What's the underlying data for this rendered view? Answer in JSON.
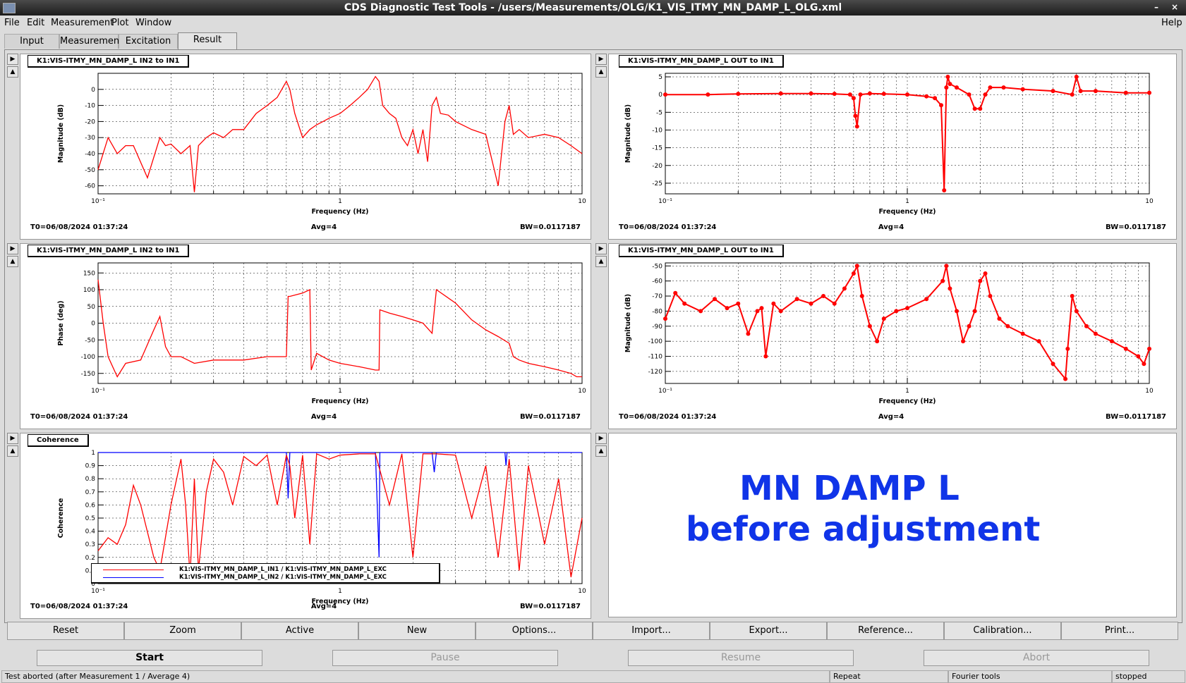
{
  "window": {
    "title": "CDS Diagnostic Test Tools - /users/Measurements/OLG/K1_VIS_ITMY_MN_DAMP_L_OLG.xml",
    "minimize": "–",
    "close": "×"
  },
  "menu": {
    "file": "File",
    "edit": "Edit",
    "measurement": "Measurement",
    "plot": "Plot",
    "window": "Window",
    "help": "Help"
  },
  "tabs": [
    "Input",
    "Measurement",
    "Excitation",
    "Result"
  ],
  "pads": [
    {
      "title": "K1:VIS-ITMY_MN_DAMP_L IN2 to IN1",
      "xlabel": "Frequency (Hz)",
      "ylabel": "Magnitude (dB)",
      "t0": "T0=06/08/2024 01:37:24",
      "avg": "Avg=4",
      "bw": "BW=0.0117187"
    },
    {
      "title": "K1:VIS-ITMY_MN_DAMP_L OUT to IN1",
      "xlabel": "Frequency (Hz)",
      "ylabel": "Magnitude (dB)",
      "t0": "T0=06/08/2024 01:37:24",
      "avg": "Avg=4",
      "bw": "BW=0.0117187"
    },
    {
      "title": "K1:VIS-ITMY_MN_DAMP_L IN2 to IN1",
      "xlabel": "Frequency (Hz)",
      "ylabel": "Phase (deg)",
      "t0": "T0=06/08/2024 01:37:24",
      "avg": "Avg=4",
      "bw": "BW=0.0117187"
    },
    {
      "title": "K1:VIS-ITMY_MN_DAMP_L OUT to IN1",
      "xlabel": "Frequency (Hz)",
      "ylabel": "Magnitude (dB)",
      "t0": "T0=06/08/2024 01:37:24",
      "avg": "Avg=4",
      "bw": "BW=0.0117187"
    },
    {
      "title": "Coherence",
      "xlabel": "Frequency (Hz)",
      "ylabel": "Coherence",
      "t0": "T0=06/08/2024 01:37:24",
      "avg": "Avg=4",
      "bw": "BW=0.0117187"
    }
  ],
  "legend": {
    "in1": "K1:VIS-ITMY_MN_DAMP_L_IN1 / K1:VIS-ITMY_MN_DAMP_L_EXC",
    "in2": "K1:VIS-ITMY_MN_DAMP_L_IN2 / K1:VIS-ITMY_MN_DAMP_L_EXC"
  },
  "note": {
    "line1": "MN DAMP L",
    "line2": "before adjustment",
    "color": "#1034e8"
  },
  "buttons": [
    "Reset",
    "Zoom",
    "Active",
    "New",
    "Options...",
    "Import...",
    "Export...",
    "Reference...",
    "Calibration...",
    "Print..."
  ],
  "controls": {
    "start": "Start",
    "pause": "Pause",
    "resume": "Resume",
    "abort": "Abort"
  },
  "status": {
    "message": "Test aborted (after Measurement 1 / Average 4)",
    "repeat": "Repeat",
    "fourier": "Fourier tools",
    "state": "stopped"
  },
  "colors": {
    "trace": "#ff0000",
    "trace2": "#0000ff"
  },
  "chart_data": [
    {
      "type": "line",
      "title": "K1:VIS-ITMY_MN_DAMP_L IN2 to IN1",
      "xlabel": "Frequency (Hz)",
      "ylabel": "Magnitude (dB)",
      "xscale": "log",
      "xlim": [
        0.1,
        10
      ],
      "ylim": [
        -65,
        10
      ],
      "xticks": [
        "10⁻¹",
        "1",
        "10"
      ],
      "yticks": [
        0,
        -10,
        -20,
        -30,
        -40,
        -50,
        -60
      ],
      "grid": true,
      "series": [
        {
          "color": "#ff0000",
          "x": [
            0.1,
            0.11,
            0.12,
            0.13,
            0.14,
            0.16,
            0.18,
            0.19,
            0.2,
            0.22,
            0.24,
            0.25,
            0.26,
            0.28,
            0.3,
            0.33,
            0.36,
            0.4,
            0.45,
            0.5,
            0.55,
            0.6,
            0.62,
            0.65,
            0.7,
            0.75,
            0.8,
            0.85,
            0.9,
            1.0,
            1.1,
            1.2,
            1.3,
            1.4,
            1.45,
            1.5,
            1.6,
            1.7,
            1.8,
            1.9,
            2.0,
            2.1,
            2.2,
            2.3,
            2.4,
            2.5,
            2.6,
            2.8,
            3.0,
            3.5,
            4.0,
            4.5,
            4.8,
            5.0,
            5.2,
            5.5,
            6.0,
            7.0,
            8.0,
            9.0,
            10.0
          ],
          "y": [
            -50,
            -30,
            -40,
            -35,
            -35,
            -55,
            -30,
            -35,
            -34,
            -40,
            -35,
            -64,
            -35,
            -30,
            -27,
            -30,
            -25,
            -25,
            -15,
            -10,
            -5,
            5,
            0,
            -15,
            -30,
            -25,
            -22,
            -20,
            -18,
            -15,
            -10,
            -5,
            0,
            8,
            5,
            -10,
            -15,
            -18,
            -30,
            -35,
            -25,
            -40,
            -25,
            -45,
            -10,
            -5,
            -15,
            -16,
            -20,
            -25,
            -28,
            -60,
            -20,
            -10,
            -28,
            -25,
            -30,
            -28,
            -30,
            -35,
            -40
          ]
        }
      ]
    },
    {
      "type": "line",
      "title": "K1:VIS-ITMY_MN_DAMP_L OUT to IN1",
      "xlabel": "Frequency (Hz)",
      "ylabel": "Magnitude (dB)",
      "xscale": "log",
      "xlim": [
        0.1,
        10
      ],
      "ylim": [
        -28,
        6
      ],
      "xticks": [
        "10⁻¹",
        "1",
        "10"
      ],
      "yticks": [
        5,
        0,
        -5,
        -10,
        -15,
        -20,
        -25
      ],
      "grid": true,
      "series": [
        {
          "color": "#ff0000",
          "x": [
            0.1,
            0.15,
            0.2,
            0.3,
            0.4,
            0.5,
            0.58,
            0.6,
            0.61,
            0.62,
            0.64,
            0.7,
            0.8,
            1.0,
            1.2,
            1.3,
            1.38,
            1.42,
            1.45,
            1.47,
            1.5,
            1.6,
            1.8,
            1.9,
            2.0,
            2.1,
            2.2,
            2.5,
            3.0,
            4.0,
            4.8,
            5.0,
            5.2,
            6.0,
            8.0,
            10.0
          ],
          "y": [
            0,
            0,
            0.2,
            0.3,
            0.3,
            0.2,
            0,
            -1,
            -6,
            -9,
            0,
            0.3,
            0.2,
            0,
            -0.5,
            -1,
            -3,
            -27,
            2,
            5,
            3,
            2,
            0,
            -4,
            -4,
            0,
            2,
            2,
            1.5,
            1,
            0,
            5,
            1,
            1,
            0.5,
            0.5
          ]
        }
      ]
    },
    {
      "type": "line",
      "title": "K1:VIS-ITMY_MN_DAMP_L IN2 to IN1",
      "xlabel": "Frequency (Hz)",
      "ylabel": "Phase (deg)",
      "xscale": "log",
      "xlim": [
        0.1,
        10
      ],
      "ylim": [
        -180,
        180
      ],
      "xticks": [
        "10⁻¹",
        "1",
        "10"
      ],
      "yticks": [
        150,
        100,
        50,
        0,
        -50,
        -100,
        -150
      ],
      "grid": true,
      "series": [
        {
          "color": "#ff0000",
          "x": [
            0.1,
            0.105,
            0.11,
            0.12,
            0.13,
            0.15,
            0.17,
            0.18,
            0.19,
            0.2,
            0.22,
            0.25,
            0.3,
            0.35,
            0.4,
            0.5,
            0.6,
            0.61,
            0.62,
            0.7,
            0.75,
            0.76,
            0.8,
            0.9,
            1.0,
            1.2,
            1.4,
            1.45,
            1.46,
            1.6,
            1.8,
            2.0,
            2.2,
            2.4,
            2.5,
            3.0,
            3.5,
            4.0,
            4.5,
            5.0,
            5.2,
            5.5,
            6.0,
            7.0,
            8.0,
            9.0,
            9.5,
            10.0
          ],
          "y": [
            130,
            0,
            -100,
            -160,
            -120,
            -110,
            -20,
            20,
            -70,
            -100,
            -100,
            -120,
            -110,
            -110,
            -110,
            -100,
            -100,
            80,
            80,
            90,
            100,
            -140,
            -90,
            -110,
            -120,
            -130,
            -140,
            -140,
            40,
            30,
            20,
            10,
            0,
            -30,
            100,
            60,
            10,
            -20,
            -40,
            -60,
            -100,
            -110,
            -120,
            -130,
            -140,
            -150,
            -160,
            -160
          ]
        }
      ]
    },
    {
      "type": "line",
      "title": "K1:VIS-ITMY_MN_DAMP_L OUT to IN1",
      "xlabel": "Frequency (Hz)",
      "ylabel": "Magnitude (dB)",
      "xscale": "log",
      "xlim": [
        0.1,
        10
      ],
      "ylim": [
        -128,
        -48
      ],
      "xticks": [
        "10⁻¹",
        "1",
        "10"
      ],
      "yticks": [
        -50,
        -60,
        -70,
        -80,
        -90,
        -100,
        -110,
        -120
      ],
      "grid": true,
      "series": [
        {
          "color": "#ff0000",
          "x": [
            0.1,
            0.11,
            0.12,
            0.14,
            0.16,
            0.18,
            0.2,
            0.22,
            0.24,
            0.25,
            0.26,
            0.28,
            0.3,
            0.35,
            0.4,
            0.45,
            0.5,
            0.55,
            0.6,
            0.62,
            0.65,
            0.7,
            0.75,
            0.8,
            0.9,
            1.0,
            1.2,
            1.4,
            1.45,
            1.5,
            1.6,
            1.7,
            1.8,
            1.9,
            2.0,
            2.1,
            2.2,
            2.4,
            2.6,
            3.0,
            3.5,
            4.0,
            4.5,
            4.6,
            4.8,
            5.0,
            5.5,
            6.0,
            7.0,
            8.0,
            9.0,
            9.5,
            10.0
          ],
          "y": [
            -85,
            -68,
            -75,
            -80,
            -72,
            -78,
            -75,
            -95,
            -80,
            -78,
            -110,
            -75,
            -80,
            -72,
            -75,
            -70,
            -75,
            -65,
            -55,
            -50,
            -70,
            -90,
            -100,
            -85,
            -80,
            -78,
            -72,
            -60,
            -50,
            -65,
            -80,
            -100,
            -90,
            -80,
            -60,
            -55,
            -70,
            -85,
            -90,
            -95,
            -100,
            -115,
            -125,
            -105,
            -70,
            -80,
            -90,
            -95,
            -100,
            -105,
            -110,
            -115,
            -105
          ]
        }
      ]
    },
    {
      "type": "line",
      "title": "Coherence",
      "xlabel": "Frequency (Hz)",
      "ylabel": "Coherence",
      "xscale": "log",
      "xlim": [
        0.1,
        10
      ],
      "ylim": [
        0,
        1
      ],
      "xticks": [
        "10⁻¹",
        "1",
        "10"
      ],
      "yticks": [
        1,
        0.9,
        0.8,
        0.7,
        0.6,
        0.5,
        0.4,
        0.3,
        0.2,
        0.1,
        0
      ],
      "grid": true,
      "series": [
        {
          "name": "K1:VIS-ITMY_MN_DAMP_L_IN1 / K1:VIS-ITMY_MN_DAMP_L_EXC",
          "color": "#ff0000",
          "x": [
            0.1,
            0.11,
            0.12,
            0.13,
            0.14,
            0.15,
            0.17,
            0.18,
            0.2,
            0.22,
            0.23,
            0.24,
            0.25,
            0.26,
            0.28,
            0.3,
            0.33,
            0.36,
            0.4,
            0.45,
            0.5,
            0.55,
            0.6,
            0.62,
            0.65,
            0.7,
            0.75,
            0.8,
            0.9,
            1.0,
            1.2,
            1.4,
            1.6,
            1.8,
            2.0,
            2.2,
            2.5,
            3.0,
            3.5,
            4.0,
            4.5,
            5.0,
            5.5,
            6.0,
            7.0,
            8.0,
            9.0,
            10.0
          ],
          "y": [
            0.25,
            0.35,
            0.3,
            0.45,
            0.75,
            0.6,
            0.2,
            0.1,
            0.6,
            0.95,
            0.6,
            0.05,
            0.8,
            0.1,
            0.7,
            0.95,
            0.85,
            0.6,
            0.97,
            0.9,
            0.98,
            0.6,
            0.98,
            0.9,
            0.5,
            0.98,
            0.3,
            0.99,
            0.95,
            0.98,
            0.99,
            0.99,
            0.6,
            0.99,
            0.2,
            0.99,
            0.99,
            0.98,
            0.5,
            0.9,
            0.2,
            0.95,
            0.1,
            0.9,
            0.3,
            0.8,
            0.05,
            0.5
          ]
        },
        {
          "name": "K1:VIS-ITMY_MN_DAMP_L_IN2 / K1:VIS-ITMY_MN_DAMP_L_EXC",
          "color": "#0000ff",
          "x": [
            0.1,
            0.5,
            0.6,
            0.61,
            0.62,
            0.65,
            0.8,
            1.0,
            1.4,
            1.45,
            1.46,
            1.5,
            2.0,
            2.4,
            2.45,
            2.5,
            4.0,
            4.8,
            4.85,
            4.9,
            6.0,
            10.0
          ],
          "y": [
            1,
            1,
            1,
            0.65,
            1,
            1,
            1,
            1,
            1,
            0.2,
            1,
            1,
            1,
            1,
            0.85,
            1,
            1,
            1,
            0.9,
            1,
            1,
            1
          ]
        }
      ]
    }
  ]
}
